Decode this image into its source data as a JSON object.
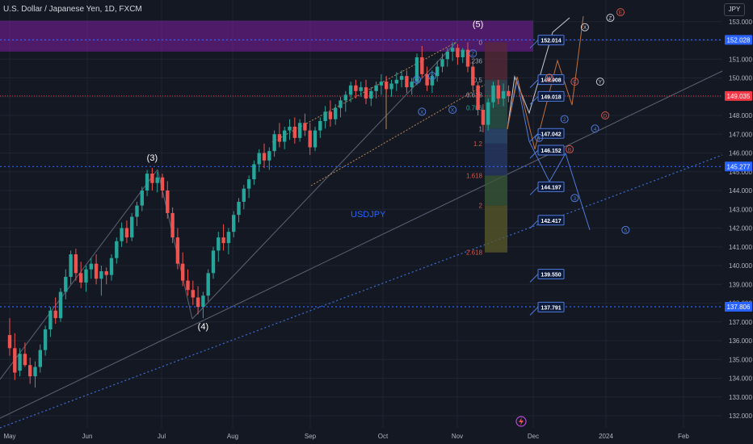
{
  "header": {
    "title": "U.S. Dollar / Japanese Yen, 1D, FXCM",
    "currency": "JPY"
  },
  "colors": {
    "background": "#141823",
    "up": "#26a69a",
    "down": "#ef5350",
    "grid": "#1f2433",
    "axis_text": "#b2b5be",
    "level_line": "#2962ff",
    "current_price": "#f23645",
    "zone": "#7b1fa2"
  },
  "chart_data": {
    "type": "candlestick",
    "symbol_watermark": "USDJPY",
    "y_axis": {
      "min": 131.8,
      "max": 153.6,
      "ticks": [
        "132.000",
        "133.000",
        "134.000",
        "135.000",
        "136.000",
        "137.000",
        "138.000",
        "139.000",
        "140.000",
        "141.000",
        "142.000",
        "143.000",
        "144.000",
        "145.000",
        "146.000",
        "147.000",
        "148.000",
        "149.000",
        "150.000",
        "151.000",
        "152.000",
        "153.000"
      ]
    },
    "x_axis": {
      "labels": [
        "May",
        "Jun",
        "Jul",
        "Aug",
        "Sep",
        "Oct",
        "Nov",
        "Dec",
        "2024",
        "Feb"
      ]
    },
    "price_labels": [
      {
        "value": "152.028",
        "price": 152.028,
        "kind": "level"
      },
      {
        "value": "149.035",
        "price": 149.035,
        "kind": "current"
      },
      {
        "value": "145.277",
        "price": 145.277,
        "kind": "level"
      },
      {
        "value": "137.806",
        "price": 137.806,
        "kind": "level"
      }
    ],
    "target_boxes": [
      {
        "label": "152.014",
        "price": 152.014
      },
      {
        "label": "149.908",
        "price": 149.908
      },
      {
        "label": "149.018",
        "price": 149.018
      },
      {
        "label": "147.042",
        "price": 147.042
      },
      {
        "label": "146.152",
        "price": 146.152
      },
      {
        "label": "144.197",
        "price": 144.197
      },
      {
        "label": "142.417",
        "price": 142.417
      },
      {
        "label": "139.550",
        "price": 139.55
      },
      {
        "label": "137.791",
        "price": 137.791
      }
    ],
    "fib_levels": [
      {
        "label": "0",
        "price": 151.9
      },
      {
        "label": "0.236",
        "price": 150.9
      },
      {
        "label": "0.5",
        "price": 149.9
      },
      {
        "label": "0.618",
        "price": 149.1
      },
      {
        "label": "0.786",
        "price": 148.4
      },
      {
        "label": "1",
        "price": 147.3
      },
      {
        "label": "1.2",
        "price": 146.5
      },
      {
        "label": "1.618",
        "price": 144.8
      },
      {
        "label": "2",
        "price": 143.2
      },
      {
        "label": "2.618",
        "price": 140.7
      }
    ],
    "wave_labels": [
      {
        "text": "(3)",
        "date_index": 28,
        "price": 145.6,
        "style": "major"
      },
      {
        "text": "(4)",
        "date_index": 38,
        "price": 136.6,
        "style": "major"
      },
      {
        "text": "(5)",
        "date_index": 92,
        "price": 152.7,
        "style": "major"
      },
      {
        "text": "W",
        "date_index": 80,
        "price": 149.9,
        "style": "circle-blue"
      },
      {
        "text": "Y",
        "date_index": 83,
        "price": 150.1,
        "style": "circle-blue"
      },
      {
        "text": "Z",
        "date_index": 91,
        "price": 151.3,
        "style": "circle-blue"
      },
      {
        "text": "X",
        "date_index": 81,
        "price": 148.2,
        "style": "circle-blue"
      },
      {
        "text": "X",
        "date_index": 87,
        "price": 148.3,
        "style": "circle-blue"
      },
      {
        "text": "1",
        "date_index": 104,
        "price": 146.8,
        "style": "circle-blue"
      },
      {
        "text": "2",
        "date_index": 109,
        "price": 147.8,
        "style": "circle-blue"
      },
      {
        "text": "3",
        "date_index": 111,
        "price": 143.6,
        "style": "circle-blue"
      },
      {
        "text": "4",
        "date_index": 115,
        "price": 147.3,
        "style": "circle-blue"
      },
      {
        "text": "5",
        "date_index": 121,
        "price": 141.9,
        "style": "circle-blue"
      },
      {
        "text": "W",
        "date_index": 106,
        "price": 150.0,
        "style": "circle-white"
      },
      {
        "text": "X",
        "date_index": 113,
        "price": 152.7,
        "style": "circle-white"
      },
      {
        "text": "Y",
        "date_index": 116,
        "price": 149.8,
        "style": "circle-white"
      },
      {
        "text": "Z",
        "date_index": 118,
        "price": 153.2,
        "style": "circle-white"
      },
      {
        "text": "A",
        "date_index": 106,
        "price": 150.0,
        "style": "circle-red"
      },
      {
        "text": "B",
        "date_index": 110,
        "price": 146.2,
        "style": "circle-red"
      },
      {
        "text": "C",
        "date_index": 111,
        "price": 149.8,
        "style": "circle-red"
      },
      {
        "text": "D",
        "date_index": 117,
        "price": 148.0,
        "style": "circle-red"
      },
      {
        "text": "E",
        "date_index": 120,
        "price": 153.5,
        "style": "circle-red"
      }
    ],
    "candles_ohlc": [
      [
        136.3,
        137.2,
        135.2,
        135.6
      ],
      [
        135.6,
        136.4,
        133.9,
        134.3
      ],
      [
        134.4,
        135.6,
        134.1,
        135.3
      ],
      [
        135.3,
        135.9,
        134.6,
        134.7
      ],
      [
        134.7,
        135.1,
        133.7,
        134.1
      ],
      [
        134.1,
        134.9,
        133.5,
        134.6
      ],
      [
        134.6,
        135.8,
        134.3,
        135.5
      ],
      [
        135.5,
        136.8,
        135.2,
        136.6
      ],
      [
        136.6,
        137.8,
        136.2,
        137.6
      ],
      [
        137.6,
        138.3,
        136.9,
        137.2
      ],
      [
        137.2,
        138.8,
        137.0,
        138.6
      ],
      [
        138.6,
        139.8,
        138.2,
        139.4
      ],
      [
        139.4,
        140.8,
        139.0,
        140.6
      ],
      [
        140.6,
        140.9,
        139.2,
        139.6
      ],
      [
        139.6,
        140.2,
        138.8,
        139.1
      ],
      [
        139.1,
        140.0,
        138.6,
        139.8
      ],
      [
        139.8,
        140.4,
        139.3,
        140.1
      ],
      [
        140.1,
        140.6,
        139.0,
        139.3
      ],
      [
        139.3,
        140.0,
        138.4,
        139.7
      ],
      [
        139.7,
        139.9,
        139.0,
        139.5
      ],
      [
        139.5,
        140.6,
        139.2,
        140.4
      ],
      [
        140.4,
        141.5,
        140.1,
        141.3
      ],
      [
        141.3,
        142.3,
        141.0,
        142.0
      ],
      [
        142.0,
        142.4,
        141.2,
        141.5
      ],
      [
        141.5,
        142.8,
        141.3,
        142.6
      ],
      [
        142.6,
        143.4,
        142.1,
        143.2
      ],
      [
        143.2,
        144.2,
        142.9,
        144.0
      ],
      [
        144.0,
        145.1,
        143.7,
        144.9
      ],
      [
        144.9,
        145.2,
        144.0,
        144.4
      ],
      [
        144.4,
        145.0,
        143.9,
        144.7
      ],
      [
        144.7,
        144.9,
        143.6,
        144.0
      ],
      [
        144.0,
        144.5,
        142.5,
        142.8
      ],
      [
        142.8,
        143.1,
        141.2,
        141.5
      ],
      [
        141.5,
        142.0,
        139.8,
        140.1
      ],
      [
        140.1,
        140.7,
        138.9,
        139.2
      ],
      [
        139.2,
        139.8,
        138.4,
        138.7
      ],
      [
        138.7,
        139.2,
        137.9,
        138.3
      ],
      [
        138.3,
        138.9,
        137.4,
        137.8
      ],
      [
        137.8,
        138.6,
        137.2,
        138.4
      ],
      [
        138.4,
        139.8,
        138.1,
        139.6
      ],
      [
        139.6,
        141.0,
        139.3,
        140.8
      ],
      [
        140.8,
        141.8,
        140.2,
        141.5
      ],
      [
        141.5,
        142.2,
        140.8,
        141.2
      ],
      [
        141.2,
        142.0,
        140.6,
        141.8
      ],
      [
        141.8,
        142.9,
        141.5,
        142.7
      ],
      [
        142.7,
        143.6,
        142.3,
        143.4
      ],
      [
        143.4,
        144.3,
        143.0,
        144.1
      ],
      [
        144.1,
        144.8,
        143.6,
        144.6
      ],
      [
        144.6,
        145.6,
        144.3,
        145.4
      ],
      [
        145.4,
        146.2,
        145.0,
        146.0
      ],
      [
        146.0,
        146.5,
        145.2,
        145.6
      ],
      [
        145.6,
        146.3,
        145.1,
        146.1
      ],
      [
        146.1,
        147.2,
        145.8,
        147.0
      ],
      [
        147.0,
        147.6,
        146.3,
        146.6
      ],
      [
        146.6,
        147.4,
        146.2,
        147.2
      ],
      [
        147.2,
        147.8,
        146.7,
        147.4
      ],
      [
        147.4,
        147.9,
        146.5,
        146.8
      ],
      [
        146.8,
        147.8,
        146.6,
        147.6
      ],
      [
        147.6,
        148.1,
        146.9,
        147.2
      ],
      [
        147.2,
        147.6,
        145.9,
        146.3
      ],
      [
        146.3,
        147.4,
        146.1,
        147.2
      ],
      [
        147.2,
        147.9,
        146.8,
        147.7
      ],
      [
        147.7,
        148.5,
        147.3,
        148.2
      ],
      [
        148.2,
        148.8,
        147.4,
        147.8
      ],
      [
        147.8,
        148.6,
        147.5,
        148.4
      ],
      [
        148.4,
        149.0,
        147.9,
        148.8
      ],
      [
        148.8,
        149.3,
        148.2,
        149.1
      ],
      [
        149.1,
        149.8,
        148.7,
        149.6
      ],
      [
        149.6,
        149.9,
        148.9,
        149.3
      ],
      [
        149.3,
        149.8,
        149.0,
        149.5
      ],
      [
        149.5,
        149.9,
        148.6,
        148.9
      ],
      [
        148.9,
        149.5,
        148.5,
        149.3
      ],
      [
        149.3,
        149.8,
        148.9,
        149.6
      ],
      [
        149.6,
        150.2,
        149.1,
        149.8
      ],
      [
        149.8,
        150.1,
        149.2,
        149.4
      ],
      [
        149.4,
        149.9,
        149.0,
        149.7
      ],
      [
        149.7,
        150.3,
        149.3,
        149.9
      ],
      [
        149.9,
        150.4,
        149.5,
        150.1
      ],
      [
        150.1,
        150.4,
        149.2,
        149.5
      ],
      [
        149.5,
        150.0,
        149.1,
        149.8
      ],
      [
        149.8,
        151.3,
        149.6,
        151.1
      ],
      [
        151.1,
        151.7,
        150.0,
        150.2
      ],
      [
        150.2,
        150.6,
        149.3,
        149.6
      ],
      [
        149.6,
        150.4,
        149.2,
        150.1
      ],
      [
        150.1,
        150.9,
        149.8,
        150.6
      ],
      [
        150.6,
        151.3,
        150.3,
        151.0
      ],
      [
        151.0,
        151.6,
        150.6,
        151.4
      ],
      [
        151.4,
        151.9,
        150.9,
        151.6
      ],
      [
        151.6,
        151.8,
        150.7,
        151.1
      ],
      [
        151.1,
        151.6,
        150.8,
        151.5
      ],
      [
        151.5,
        151.9,
        150.3,
        150.6
      ],
      [
        150.6,
        150.9,
        149.3,
        149.6
      ],
      [
        149.6,
        149.8,
        148.0,
        148.3
      ],
      [
        148.3,
        148.6,
        147.1,
        147.5
      ],
      [
        147.5,
        148.9,
        147.2,
        148.7
      ],
      [
        148.7,
        149.8,
        148.4,
        149.6
      ],
      [
        149.6,
        149.9,
        148.6,
        148.9
      ],
      [
        148.9,
        149.7,
        148.5,
        149.3
      ],
      [
        149.3,
        149.6,
        148.7,
        149.035
      ]
    ],
    "candles_start_index": 0
  }
}
